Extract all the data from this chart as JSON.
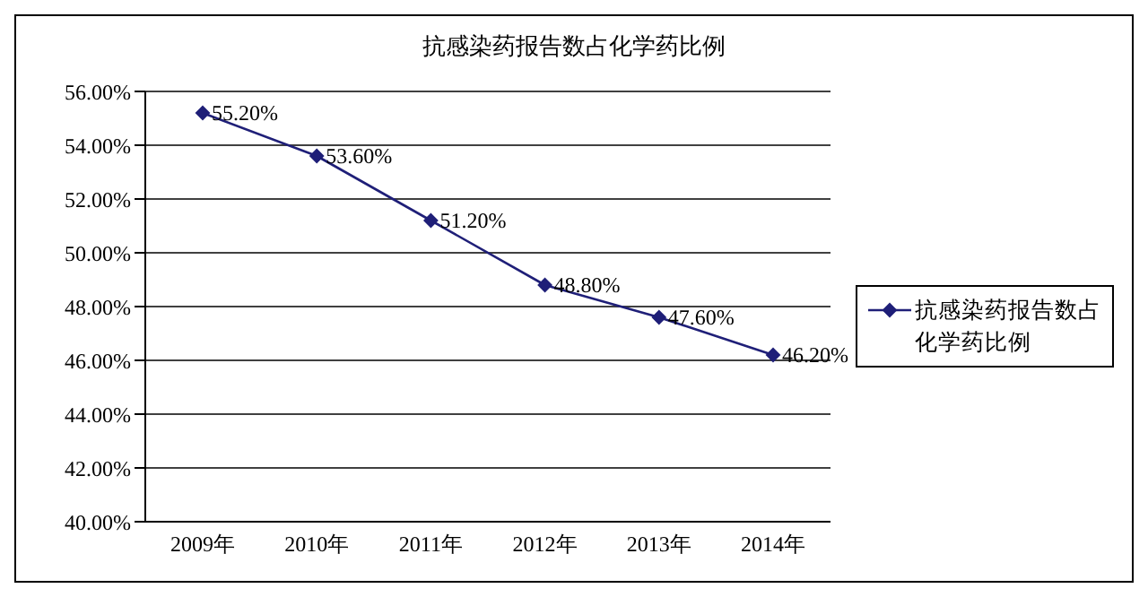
{
  "chart_data": {
    "type": "line",
    "title": "抗感染药报告数占化学药比例",
    "categories": [
      "2009年",
      "2010年",
      "2011年",
      "2012年",
      "2013年",
      "2014年"
    ],
    "series": [
      {
        "name": "抗感染药报告数占化学药比例",
        "color": "#1f1f78",
        "values": [
          55.2,
          53.6,
          51.2,
          48.8,
          47.6,
          46.2
        ],
        "value_labels": [
          "55.20%",
          "53.60%",
          "51.20%",
          "48.80%",
          "47.60%",
          "46.20%"
        ]
      }
    ],
    "ylim": [
      40,
      56
    ],
    "yticks": [
      {
        "value": 40,
        "label": "40.00%"
      },
      {
        "value": 42,
        "label": "42.00%"
      },
      {
        "value": 44,
        "label": "44.00%"
      },
      {
        "value": 46,
        "label": "46.00%"
      },
      {
        "value": 48,
        "label": "48.00%"
      },
      {
        "value": 50,
        "label": "50.00%"
      },
      {
        "value": 52,
        "label": "52.00%"
      },
      {
        "value": 54,
        "label": "54.00%"
      },
      {
        "value": 56,
        "label": "56.00%"
      }
    ],
    "grid": "y",
    "legend": "right",
    "marker": "diamond",
    "line_style": "solid"
  }
}
